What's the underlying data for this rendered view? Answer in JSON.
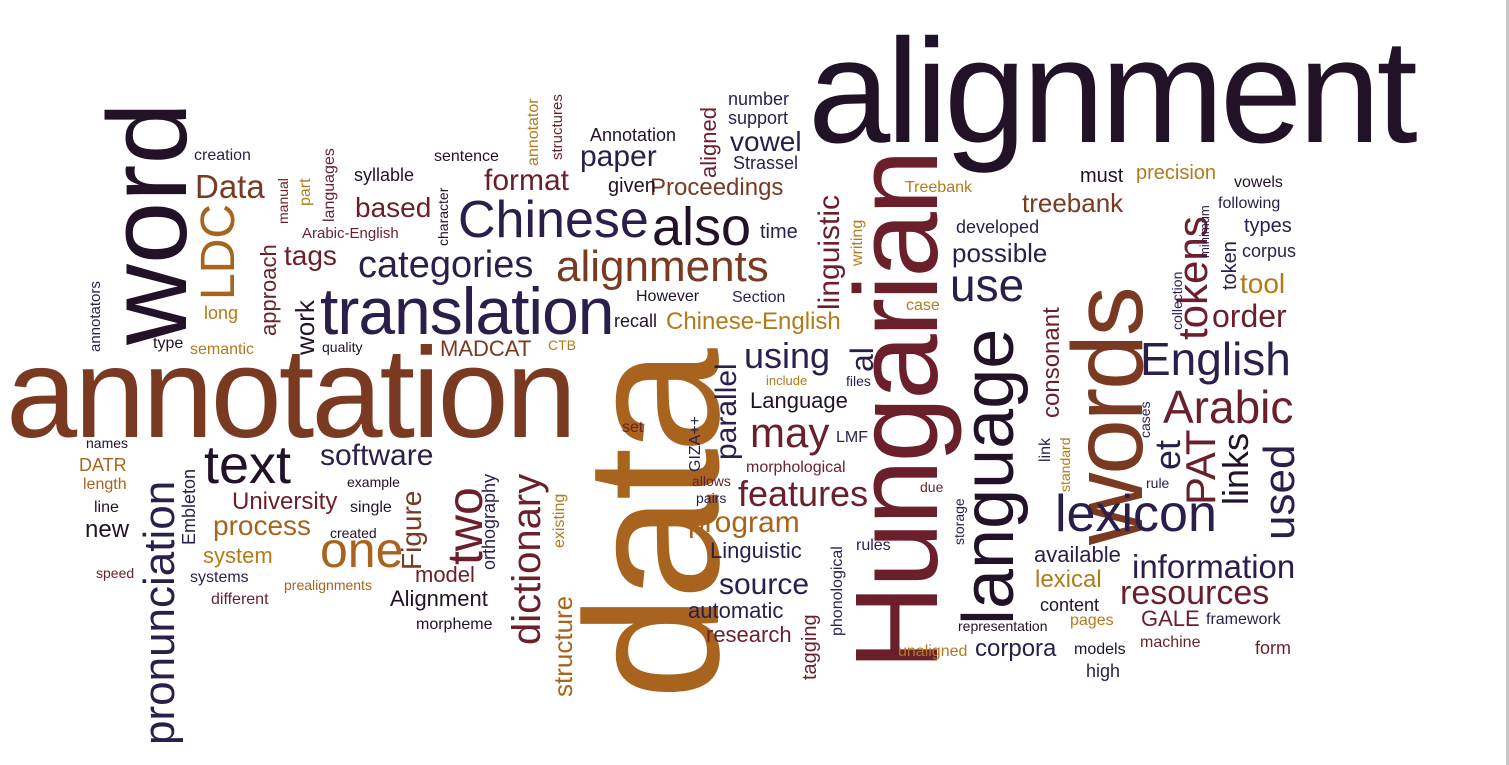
{
  "palette": {
    "dark": "#221228",
    "navy": "#2a1f4a",
    "maroon": "#6b1f2a",
    "brown": "#7a3a22",
    "rust": "#8f4a1a",
    "orange": "#a8641e",
    "gold": "#b37a1a"
  },
  "words": [
    {
      "id": "alignment",
      "text": "alignment",
      "color": "dark"
    },
    {
      "id": "annotation",
      "text": "annotation",
      "color": "brown"
    },
    {
      "id": "word",
      "text": "word",
      "color": "dark"
    },
    {
      "id": "data",
      "text": "data",
      "color": "orange"
    },
    {
      "id": "hungarian",
      "text": "Hungarian",
      "color": "maroon"
    },
    {
      "id": "words",
      "text": "words",
      "color": "brown"
    },
    {
      "id": "language",
      "text": "language",
      "color": "dark"
    },
    {
      "id": "translation",
      "text": "translation",
      "color": "navy"
    },
    {
      "id": "chinese",
      "text": "Chinese",
      "color": "navy"
    },
    {
      "id": "alignments",
      "text": "alignments",
      "color": "brown"
    },
    {
      "id": "also",
      "text": "also",
      "color": "dark"
    },
    {
      "id": "text",
      "text": "text",
      "color": "dark"
    },
    {
      "id": "lexicon",
      "text": "lexicon",
      "color": "navy"
    },
    {
      "id": "english",
      "text": "English",
      "color": "navy"
    },
    {
      "id": "arabic",
      "text": "Arabic",
      "color": "maroon"
    },
    {
      "id": "one",
      "text": "one",
      "color": "orange"
    },
    {
      "id": "two",
      "text": "two",
      "color": "maroon"
    },
    {
      "id": "categories",
      "text": "categories",
      "color": "navy"
    },
    {
      "id": "pronunciation",
      "text": "pronunciation",
      "color": "navy"
    },
    {
      "id": "dictionary",
      "text": "dictionary",
      "color": "maroon"
    },
    {
      "id": "ldc",
      "text": "LDC",
      "color": "orange"
    },
    {
      "id": "use",
      "text": "use",
      "color": "navy"
    },
    {
      "id": "tokens",
      "text": "tokens",
      "color": "maroon"
    },
    {
      "id": "used",
      "text": "used",
      "color": "navy"
    },
    {
      "id": "pat",
      "text": "PAT",
      "color": "maroon"
    },
    {
      "id": "links",
      "text": "links",
      "color": "dark"
    },
    {
      "id": "may",
      "text": "may",
      "color": "maroon"
    },
    {
      "id": "features",
      "text": "features",
      "color": "maroon"
    },
    {
      "id": "using",
      "text": "using",
      "color": "navy"
    },
    {
      "id": "information",
      "text": "information",
      "color": "navy"
    },
    {
      "id": "resources",
      "text": "resources",
      "color": "maroon"
    },
    {
      "id": "software",
      "text": "software",
      "color": "navy"
    },
    {
      "id": "process",
      "text": "process",
      "color": "orange"
    },
    {
      "id": "source",
      "text": "source",
      "color": "navy"
    },
    {
      "id": "program",
      "text": "program",
      "color": "orange"
    },
    {
      "id": "data-small",
      "text": "Data",
      "color": "brown"
    },
    {
      "id": "based",
      "text": "based",
      "color": "maroon"
    },
    {
      "id": "format",
      "text": "format",
      "color": "maroon"
    },
    {
      "id": "paper",
      "text": "paper",
      "color": "navy"
    },
    {
      "id": "vowel",
      "text": "vowel",
      "color": "navy"
    },
    {
      "id": "treebank",
      "text": "treebank",
      "color": "brown"
    },
    {
      "id": "possible",
      "text": "possible",
      "color": "navy"
    },
    {
      "id": "order",
      "text": "order",
      "color": "maroon"
    },
    {
      "id": "tool",
      "text": "tool",
      "color": "gold"
    },
    {
      "id": "et",
      "text": "et",
      "color": "navy"
    },
    {
      "id": "al",
      "text": "al",
      "color": "navy"
    },
    {
      "id": "parallel",
      "text": "parallel",
      "color": "navy"
    },
    {
      "id": "linguistic",
      "text": "linguistic",
      "color": "maroon"
    },
    {
      "id": "figure",
      "text": "Figure",
      "color": "brown"
    },
    {
      "id": "university",
      "text": "University",
      "color": "maroon"
    },
    {
      "id": "tags",
      "text": "tags",
      "color": "maroon"
    },
    {
      "id": "work",
      "text": "work",
      "color": "dark"
    },
    {
      "id": "proceedings",
      "text": "Proceedings",
      "color": "brown"
    },
    {
      "id": "chinese-english",
      "text": "Chinese-English",
      "color": "gold"
    },
    {
      "id": "madcat",
      "text": "MADCAT",
      "color": "brown"
    },
    {
      "id": "system",
      "text": "system",
      "color": "gold"
    },
    {
      "id": "structure",
      "text": "structure",
      "color": "orange"
    },
    {
      "id": "lexical",
      "text": "lexical",
      "color": "gold"
    },
    {
      "id": "corpora",
      "text": "corpora",
      "color": "navy"
    },
    {
      "id": "consonant",
      "text": "consonant",
      "color": "maroon"
    },
    {
      "id": "language-cap",
      "text": "Language",
      "color": "dark"
    },
    {
      "id": "approach",
      "text": "approach",
      "color": "maroon"
    },
    {
      "id": "new",
      "text": "new",
      "color": "dark"
    },
    {
      "id": "model",
      "text": "model",
      "color": "maroon"
    },
    {
      "id": "alignment-cap",
      "text": "Alignment",
      "color": "dark"
    },
    {
      "id": "linguistic-cap",
      "text": "Linguistic",
      "color": "navy"
    },
    {
      "id": "automatic",
      "text": "automatic",
      "color": "navy"
    },
    {
      "id": "research",
      "text": "research",
      "color": "maroon"
    },
    {
      "id": "available",
      "text": "available",
      "color": "navy"
    },
    {
      "id": "gale",
      "text": "GALE",
      "color": "maroon"
    },
    {
      "id": "content",
      "text": "content",
      "color": "dark"
    },
    {
      "id": "annotation-cap",
      "text": "Annotation",
      "color": "dark"
    },
    {
      "id": "aligned",
      "text": "aligned",
      "color": "maroon"
    },
    {
      "id": "number",
      "text": "number",
      "color": "navy"
    },
    {
      "id": "support",
      "text": "support",
      "color": "navy"
    },
    {
      "id": "strassel",
      "text": "Strassel",
      "color": "navy"
    },
    {
      "id": "given",
      "text": "given",
      "color": "dark"
    },
    {
      "id": "time",
      "text": "time",
      "color": "navy"
    },
    {
      "id": "must",
      "text": "must",
      "color": "dark"
    },
    {
      "id": "precision",
      "text": "precision",
      "color": "gold"
    },
    {
      "id": "developed",
      "text": "developed",
      "color": "navy"
    },
    {
      "id": "treebank-cap",
      "text": "Treebank",
      "color": "gold"
    },
    {
      "id": "vowels",
      "text": "vowels",
      "color": "dark"
    },
    {
      "id": "following",
      "text": "following",
      "color": "navy"
    },
    {
      "id": "types",
      "text": "types",
      "color": "navy"
    },
    {
      "id": "corpus",
      "text": "corpus",
      "color": "navy"
    },
    {
      "id": "token",
      "text": "token",
      "color": "navy"
    },
    {
      "id": "minimum",
      "text": "minimum",
      "color": "navy"
    },
    {
      "id": "collection",
      "text": "collection",
      "color": "navy"
    },
    {
      "id": "writing",
      "text": "writing",
      "color": "gold"
    },
    {
      "id": "case",
      "text": "case",
      "color": "gold"
    },
    {
      "id": "however",
      "text": "However",
      "color": "dark"
    },
    {
      "id": "section",
      "text": "Section",
      "color": "navy"
    },
    {
      "id": "recall",
      "text": "recall",
      "color": "dark"
    },
    {
      "id": "ctb",
      "text": "CTB",
      "color": "gold"
    },
    {
      "id": "include",
      "text": "include",
      "color": "gold"
    },
    {
      "id": "files",
      "text": "files",
      "color": "navy"
    },
    {
      "id": "lmf",
      "text": "LMF",
      "color": "navy"
    },
    {
      "id": "gizapp",
      "text": "GIZA++",
      "color": "navy"
    },
    {
      "id": "set",
      "text": "set",
      "color": "maroon"
    },
    {
      "id": "morphological",
      "text": "morphological",
      "color": "maroon"
    },
    {
      "id": "allows",
      "text": "allows",
      "color": "maroon"
    },
    {
      "id": "pairs",
      "text": "pairs",
      "color": "navy"
    },
    {
      "id": "due",
      "text": "due",
      "color": "maroon"
    },
    {
      "id": "rules",
      "text": "rules",
      "color": "navy"
    },
    {
      "id": "phonological",
      "text": "phonological",
      "color": "navy"
    },
    {
      "id": "tagging",
      "text": "tagging",
      "color": "maroon"
    },
    {
      "id": "storage",
      "text": "storage",
      "color": "navy"
    },
    {
      "id": "link",
      "text": "link",
      "color": "navy"
    },
    {
      "id": "standard",
      "text": "standard",
      "color": "gold"
    },
    {
      "id": "cases",
      "text": "cases",
      "color": "navy"
    },
    {
      "id": "rule",
      "text": "rule",
      "color": "navy"
    },
    {
      "id": "representation",
      "text": "representation",
      "color": "dark"
    },
    {
      "id": "pages",
      "text": "pages",
      "color": "gold"
    },
    {
      "id": "framework",
      "text": "framework",
      "color": "navy"
    },
    {
      "id": "machine",
      "text": "machine",
      "color": "maroon"
    },
    {
      "id": "form",
      "text": "form",
      "color": "maroon"
    },
    {
      "id": "models",
      "text": "models",
      "color": "dark"
    },
    {
      "id": "high",
      "text": "high",
      "color": "navy"
    },
    {
      "id": "unaligned",
      "text": "unaligned",
      "color": "gold"
    },
    {
      "id": "existing",
      "text": "existing",
      "color": "gold"
    },
    {
      "id": "orthography",
      "text": "orthography",
      "color": "navy"
    },
    {
      "id": "single",
      "text": "single",
      "color": "dark"
    },
    {
      "id": "created",
      "text": "created",
      "color": "dark"
    },
    {
      "id": "example",
      "text": "example",
      "color": "dark"
    },
    {
      "id": "embleton",
      "text": "Embleton",
      "color": "navy"
    },
    {
      "id": "line",
      "text": "line",
      "color": "dark"
    },
    {
      "id": "datr",
      "text": "DATR",
      "color": "orange"
    },
    {
      "id": "length",
      "text": "length",
      "color": "orange"
    },
    {
      "id": "names",
      "text": "names",
      "color": "dark"
    },
    {
      "id": "speed",
      "text": "speed",
      "color": "maroon"
    },
    {
      "id": "systems",
      "text": "systems",
      "color": "navy"
    },
    {
      "id": "different",
      "text": "different",
      "color": "maroon"
    },
    {
      "id": "prealignments",
      "text": "prealignments",
      "color": "orange"
    },
    {
      "id": "morpheme",
      "text": "morpheme",
      "color": "dark"
    },
    {
      "id": "quality",
      "text": "quality",
      "color": "dark"
    },
    {
      "id": "semantic",
      "text": "semantic",
      "color": "gold"
    },
    {
      "id": "type",
      "text": "type",
      "color": "dark"
    },
    {
      "id": "long",
      "text": "long",
      "color": "gold"
    },
    {
      "id": "annotators",
      "text": "annotators",
      "color": "navy"
    },
    {
      "id": "creation",
      "text": "creation",
      "color": "navy"
    },
    {
      "id": "manual",
      "text": "manual",
      "color": "maroon"
    },
    {
      "id": "part",
      "text": "part",
      "color": "gold"
    },
    {
      "id": "languages",
      "text": "languages",
      "color": "maroon"
    },
    {
      "id": "arabic-english",
      "text": "Arabic-English",
      "color": "maroon"
    },
    {
      "id": "syllable",
      "text": "syllable",
      "color": "dark"
    },
    {
      "id": "character",
      "text": "character",
      "color": "dark"
    },
    {
      "id": "sentence",
      "text": "sentence",
      "color": "dark"
    },
    {
      "id": "annotator",
      "text": "annotator",
      "color": "gold"
    },
    {
      "id": "structures",
      "text": "structures",
      "color": "maroon"
    }
  ]
}
